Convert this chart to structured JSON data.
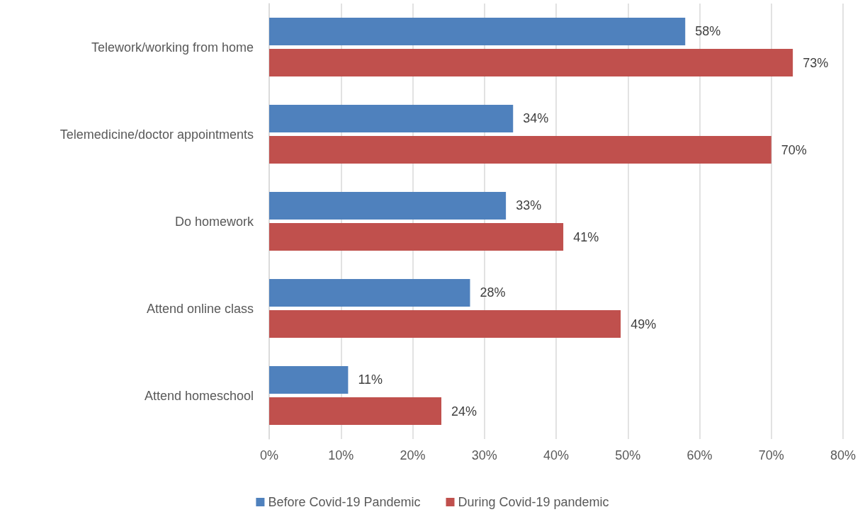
{
  "chart_data": {
    "type": "bar",
    "orientation": "horizontal",
    "categories": [
      "Telework/working from home",
      "Telemedicine/doctor appointments",
      "Do homework",
      "Attend online class",
      "Attend homeschool"
    ],
    "series": [
      {
        "name": "Before Covid-19 Pandemic",
        "color": "#4f81bd",
        "values": [
          58,
          34,
          33,
          28,
          11
        ],
        "value_labels": [
          "58%",
          "34%",
          "33%",
          "28%",
          "11%"
        ]
      },
      {
        "name": "During Covid-19 pandemic",
        "color": "#c0504d",
        "values": [
          73,
          70,
          41,
          49,
          24
        ],
        "value_labels": [
          "73%",
          "70%",
          "41%",
          "49%",
          "24%"
        ]
      }
    ],
    "xlim": [
      0,
      80
    ],
    "xticks": [
      {
        "value": 0,
        "label": "0%"
      },
      {
        "value": 10,
        "label": "10%"
      },
      {
        "value": 20,
        "label": "20%"
      },
      {
        "value": 30,
        "label": "30%"
      },
      {
        "value": 40,
        "label": "40%"
      },
      {
        "value": 50,
        "label": "50%"
      },
      {
        "value": 60,
        "label": "60%"
      },
      {
        "value": 70,
        "label": "70%"
      },
      {
        "value": 80,
        "label": "80%"
      }
    ],
    "grid": "x",
    "legend": "bottom"
  }
}
